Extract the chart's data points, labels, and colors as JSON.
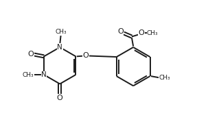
{
  "bg_color": "#ffffff",
  "line_color": "#1a1a1a",
  "line_width": 1.4,
  "figsize": [
    2.87,
    1.97
  ],
  "dpi": 100,
  "xlim": [
    0,
    10
  ],
  "ylim": [
    0,
    7
  ]
}
